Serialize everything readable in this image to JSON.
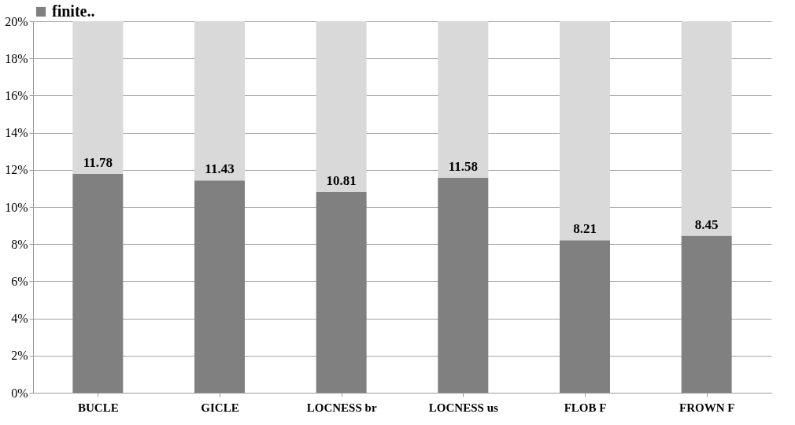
{
  "chart_data": {
    "type": "bar",
    "stacked": true,
    "categories": [
      "BUCLE",
      "GICLE",
      "LOCNESS br",
      "LOCNESS us",
      "FLOB F",
      "FROWN F"
    ],
    "series": [
      {
        "name": "finite..",
        "color": "#808080",
        "values": [
          11.78,
          11.43,
          10.81,
          11.58,
          8.21,
          8.45
        ],
        "value_labels": [
          "11.78",
          "11.43",
          "10.81",
          "11.58",
          "8.21",
          "8.45"
        ]
      },
      {
        "color": "#d9d9d9",
        "values": [
          8.22,
          8.57,
          9.19,
          8.42,
          11.79,
          11.55
        ]
      }
    ],
    "ylim": [
      0,
      20
    ],
    "yticks": [
      {
        "value": 0,
        "label": "0%"
      },
      {
        "value": 2,
        "label": "2%"
      },
      {
        "value": 4,
        "label": "4%"
      },
      {
        "value": 6,
        "label": "6%"
      },
      {
        "value": 8,
        "label": "8%"
      },
      {
        "value": 10,
        "label": "10%"
      },
      {
        "value": 12,
        "label": "12%"
      },
      {
        "value": 14,
        "label": "14%"
      },
      {
        "value": 16,
        "label": "16%"
      },
      {
        "value": 18,
        "label": "18%"
      },
      {
        "value": 20,
        "label": "20%"
      }
    ],
    "grid": "y",
    "legend": "top"
  }
}
